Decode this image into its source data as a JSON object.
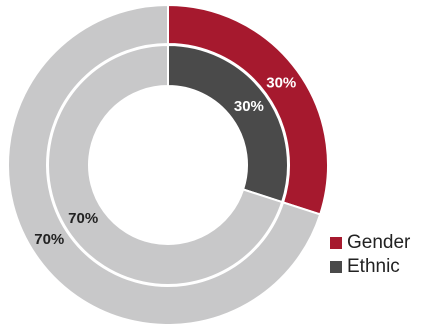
{
  "chart_data": {
    "type": "donut",
    "title": "",
    "series": [
      {
        "name": "Gender",
        "values": [
          30,
          70
        ],
        "labels": [
          "30%",
          "70%"
        ]
      },
      {
        "name": "Ethnic",
        "values": [
          30,
          70
        ],
        "labels": [
          "30%",
          "70%"
        ]
      }
    ],
    "legend_position": "bottom-right"
  },
  "colors": {
    "gender": "#a6192e",
    "ethnic": "#4a4a4a",
    "remainder": "#c8c8c9",
    "label_text": "#222222"
  }
}
